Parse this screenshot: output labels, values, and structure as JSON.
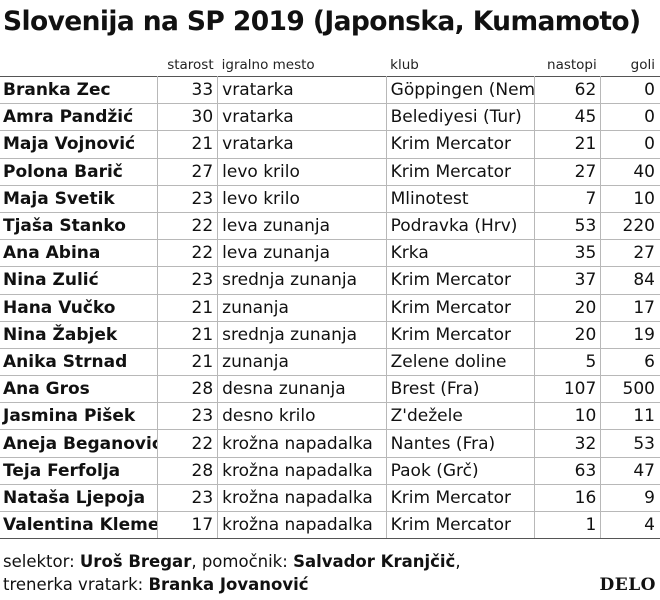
{
  "title": "Slovenija na SP 2019 (Japonska, Kumamoto)",
  "columns": {
    "age": "starost",
    "position": "igralno mesto",
    "club": "klub",
    "apps": "nastopi",
    "goals": "goli"
  },
  "players": [
    {
      "name": "Branka Zec",
      "age": "33",
      "position": "vratarka",
      "club": "Göppingen (Nem)",
      "apps": "62",
      "goals": "0"
    },
    {
      "name": "Amra Pandžić",
      "age": "30",
      "position": "vratarka",
      "club": "Belediyesi (Tur)",
      "apps": "45",
      "goals": "0"
    },
    {
      "name": "Maja Vojnović",
      "age": "21",
      "position": "vratarka",
      "club": "Krim Mercator",
      "apps": "21",
      "goals": "0"
    },
    {
      "name": "Polona Barič",
      "age": "27",
      "position": "levo krilo",
      "club": "Krim Mercator",
      "apps": "27",
      "goals": "40"
    },
    {
      "name": "Maja Svetik",
      "age": "23",
      "position": "levo krilo",
      "club": "Mlinotest",
      "apps": "7",
      "goals": "10"
    },
    {
      "name": "Tjaša Stanko",
      "age": "22",
      "position": "leva zunanja",
      "club": "Podravka (Hrv)",
      "apps": "53",
      "goals": "220"
    },
    {
      "name": "Ana Abina",
      "age": "22",
      "position": "leva zunanja",
      "club": "Krka",
      "apps": "35",
      "goals": "27"
    },
    {
      "name": "Nina Zulić",
      "age": "23",
      "position": "srednja zunanja",
      "club": "Krim Mercator",
      "apps": "37",
      "goals": "84"
    },
    {
      "name": "Hana Vučko",
      "age": "21",
      "position": "zunanja",
      "club": "Krim Mercator",
      "apps": "20",
      "goals": "17"
    },
    {
      "name": "Nina Žabjek",
      "age": "21",
      "position": "srednja zunanja",
      "club": "Krim Mercator",
      "apps": "20",
      "goals": "19"
    },
    {
      "name": "Anika Strnad",
      "age": "21",
      "position": "zunanja",
      "club": "Zelene doline",
      "apps": "5",
      "goals": "6"
    },
    {
      "name": "Ana Gros",
      "age": "28",
      "position": "desna zunanja",
      "club": "Brest (Fra)",
      "apps": "107",
      "goals": "500"
    },
    {
      "name": "Jasmina Pišek",
      "age": "23",
      "position": "desno krilo",
      "club": "Z'dežele",
      "apps": "10",
      "goals": "11"
    },
    {
      "name": "Aneja Beganović",
      "age": "22",
      "position": "krožna napadalka",
      "club": "Nantes (Fra)",
      "apps": "32",
      "goals": "53"
    },
    {
      "name": "Teja Ferfolja",
      "age": "28",
      "position": "krožna napadalka",
      "club": "Paok (Grč)",
      "apps": "63",
      "goals": "47"
    },
    {
      "name": "Nataša Ljepoja",
      "age": "23",
      "position": "krožna napadalka",
      "club": "Krim Mercator",
      "apps": "16",
      "goals": "9"
    },
    {
      "name": "Valentina Klemenčič",
      "age": "17",
      "position": "krožna napadalka",
      "club": "Krim Mercator",
      "apps": "1",
      "goals": "4"
    }
  ],
  "staff": {
    "coach_label": "selektor:",
    "coach_name": "Uroš Bregar",
    "assistant_label": ", pomočnik:",
    "assistant_name": "Salvador Kranjčič",
    "assistant_tail": ",",
    "gk_coach_label": "trenerka vratark:",
    "gk_coach_name": "Branka Jovanović"
  },
  "brand": "DELO"
}
